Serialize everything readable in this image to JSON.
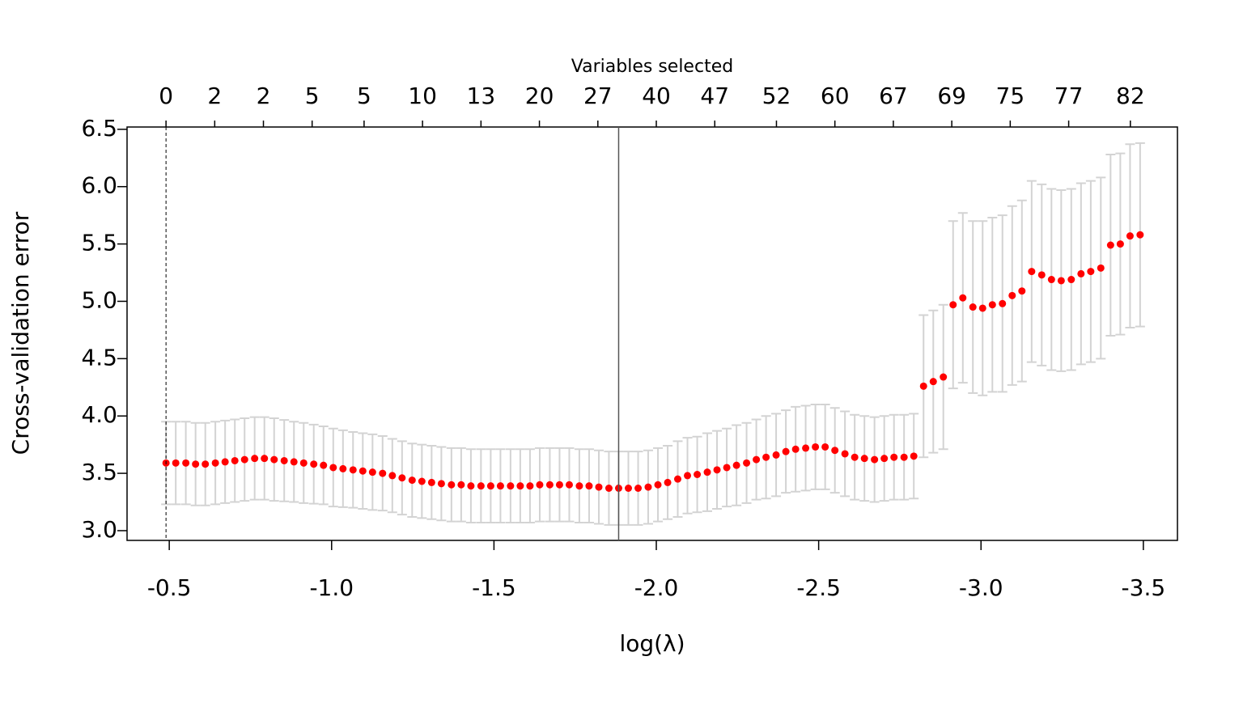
{
  "chart_data": {
    "type": "errorbar",
    "top_axis_title": "Variables selected",
    "xlabel": "log(λ)",
    "ylabel": "Cross-validation error",
    "x": [
      -0.49,
      -0.52,
      -0.551,
      -0.581,
      -0.611,
      -0.642,
      -0.672,
      -0.702,
      -0.732,
      -0.763,
      -0.793,
      -0.823,
      -0.854,
      -0.884,
      -0.914,
      -0.945,
      -0.975,
      -1.005,
      -1.035,
      -1.066,
      -1.096,
      -1.126,
      -1.157,
      -1.187,
      -1.217,
      -1.248,
      -1.278,
      -1.308,
      -1.338,
      -1.369,
      -1.399,
      -1.429,
      -1.46,
      -1.49,
      -1.52,
      -1.551,
      -1.581,
      -1.611,
      -1.641,
      -1.672,
      -1.702,
      -1.732,
      -1.763,
      -1.793,
      -1.823,
      -1.854,
      -1.884,
      -1.914,
      -1.944,
      -1.975,
      -2.005,
      -2.035,
      -2.066,
      -2.096,
      -2.126,
      -2.157,
      -2.187,
      -2.217,
      -2.247,
      -2.278,
      -2.308,
      -2.338,
      -2.369,
      -2.399,
      -2.429,
      -2.46,
      -2.49,
      -2.52,
      -2.55,
      -2.581,
      -2.611,
      -2.641,
      -2.672,
      -2.702,
      -2.732,
      -2.763,
      -2.793,
      -2.823,
      -2.853,
      -2.884,
      -2.914,
      -2.944,
      -2.975,
      -3.005,
      -3.035,
      -3.066,
      -3.096,
      -3.126,
      -3.156,
      -3.187,
      -3.217,
      -3.247,
      -3.278,
      -3.308,
      -3.338,
      -3.369,
      -3.399,
      -3.429,
      -3.459,
      -3.49
    ],
    "values": [
      3.59,
      3.59,
      3.59,
      3.58,
      3.58,
      3.59,
      3.6,
      3.61,
      3.62,
      3.63,
      3.63,
      3.62,
      3.61,
      3.6,
      3.59,
      3.58,
      3.57,
      3.55,
      3.54,
      3.53,
      3.52,
      3.51,
      3.5,
      3.48,
      3.46,
      3.44,
      3.43,
      3.42,
      3.41,
      3.4,
      3.4,
      3.39,
      3.39,
      3.39,
      3.39,
      3.39,
      3.39,
      3.39,
      3.4,
      3.4,
      3.4,
      3.4,
      3.39,
      3.39,
      3.38,
      3.37,
      3.37,
      3.37,
      3.37,
      3.38,
      3.4,
      3.42,
      3.45,
      3.48,
      3.49,
      3.51,
      3.53,
      3.55,
      3.57,
      3.59,
      3.62,
      3.64,
      3.66,
      3.69,
      3.71,
      3.72,
      3.73,
      3.73,
      3.7,
      3.67,
      3.64,
      3.63,
      3.62,
      3.63,
      3.64,
      3.64,
      3.65,
      4.26,
      4.3,
      4.34,
      4.97,
      5.03,
      4.95,
      4.94,
      4.97,
      4.98,
      5.05,
      5.09,
      5.26,
      5.23,
      5.19,
      5.18,
      5.19,
      5.24,
      5.26,
      5.29,
      5.49,
      5.5,
      5.57,
      5.58
    ],
    "errors": [
      0.36,
      0.36,
      0.36,
      0.36,
      0.36,
      0.36,
      0.36,
      0.36,
      0.36,
      0.36,
      0.36,
      0.36,
      0.355,
      0.35,
      0.35,
      0.345,
      0.34,
      0.34,
      0.335,
      0.33,
      0.33,
      0.33,
      0.325,
      0.32,
      0.32,
      0.32,
      0.32,
      0.32,
      0.32,
      0.32,
      0.32,
      0.32,
      0.32,
      0.32,
      0.32,
      0.32,
      0.32,
      0.32,
      0.32,
      0.32,
      0.32,
      0.32,
      0.32,
      0.32,
      0.32,
      0.32,
      0.32,
      0.32,
      0.32,
      0.32,
      0.32,
      0.32,
      0.33,
      0.33,
      0.33,
      0.34,
      0.34,
      0.34,
      0.35,
      0.35,
      0.35,
      0.36,
      0.36,
      0.36,
      0.37,
      0.37,
      0.37,
      0.37,
      0.37,
      0.37,
      0.37,
      0.37,
      0.37,
      0.37,
      0.37,
      0.37,
      0.37,
      0.62,
      0.62,
      0.63,
      0.73,
      0.74,
      0.75,
      0.76,
      0.76,
      0.77,
      0.78,
      0.79,
      0.79,
      0.79,
      0.79,
      0.79,
      0.79,
      0.79,
      0.79,
      0.79,
      0.79,
      0.79,
      0.8,
      0.8
    ],
    "color": "#ff0000",
    "errorbar_color": "#d3d3d3",
    "lambda_1se": -0.49,
    "lambda_min": -1.884,
    "xlim": [
      -0.37,
      -3.605
    ],
    "ylim": [
      2.915,
      6.52
    ],
    "xticks": [
      {
        "value": -0.5,
        "label": "-0.5"
      },
      {
        "value": -1.0,
        "label": "-1.0"
      },
      {
        "value": -1.5,
        "label": "-1.5"
      },
      {
        "value": -2.0,
        "label": "-2.0"
      },
      {
        "value": -2.5,
        "label": "-2.5"
      },
      {
        "value": -3.0,
        "label": "-3.0"
      },
      {
        "value": -3.5,
        "label": "-3.5"
      }
    ],
    "yticks": [
      {
        "value": 3.0,
        "label": "3.0"
      },
      {
        "value": 3.5,
        "label": "3.5"
      },
      {
        "value": 4.0,
        "label": "4.0"
      },
      {
        "value": 4.5,
        "label": "4.5"
      },
      {
        "value": 5.0,
        "label": "5.0"
      },
      {
        "value": 5.5,
        "label": "5.5"
      },
      {
        "value": 6.0,
        "label": "6.0"
      },
      {
        "value": 6.5,
        "label": "6.5"
      }
    ],
    "top_ticks": [
      {
        "value": -0.49,
        "label": "0"
      },
      {
        "value": -0.64,
        "label": "2"
      },
      {
        "value": -0.79,
        "label": "2"
      },
      {
        "value": -0.94,
        "label": "5"
      },
      {
        "value": -1.1,
        "label": "5"
      },
      {
        "value": -1.28,
        "label": "10"
      },
      {
        "value": -1.46,
        "label": "13"
      },
      {
        "value": -1.64,
        "label": "20"
      },
      {
        "value": -1.82,
        "label": "27"
      },
      {
        "value": -2.0,
        "label": "40"
      },
      {
        "value": -2.18,
        "label": "47"
      },
      {
        "value": -2.37,
        "label": "52"
      },
      {
        "value": -2.55,
        "label": "60"
      },
      {
        "value": -2.73,
        "label": "67"
      },
      {
        "value": -2.91,
        "label": "69"
      },
      {
        "value": -3.09,
        "label": "75"
      },
      {
        "value": -3.27,
        "label": "77"
      },
      {
        "value": -3.46,
        "label": "82"
      }
    ]
  }
}
